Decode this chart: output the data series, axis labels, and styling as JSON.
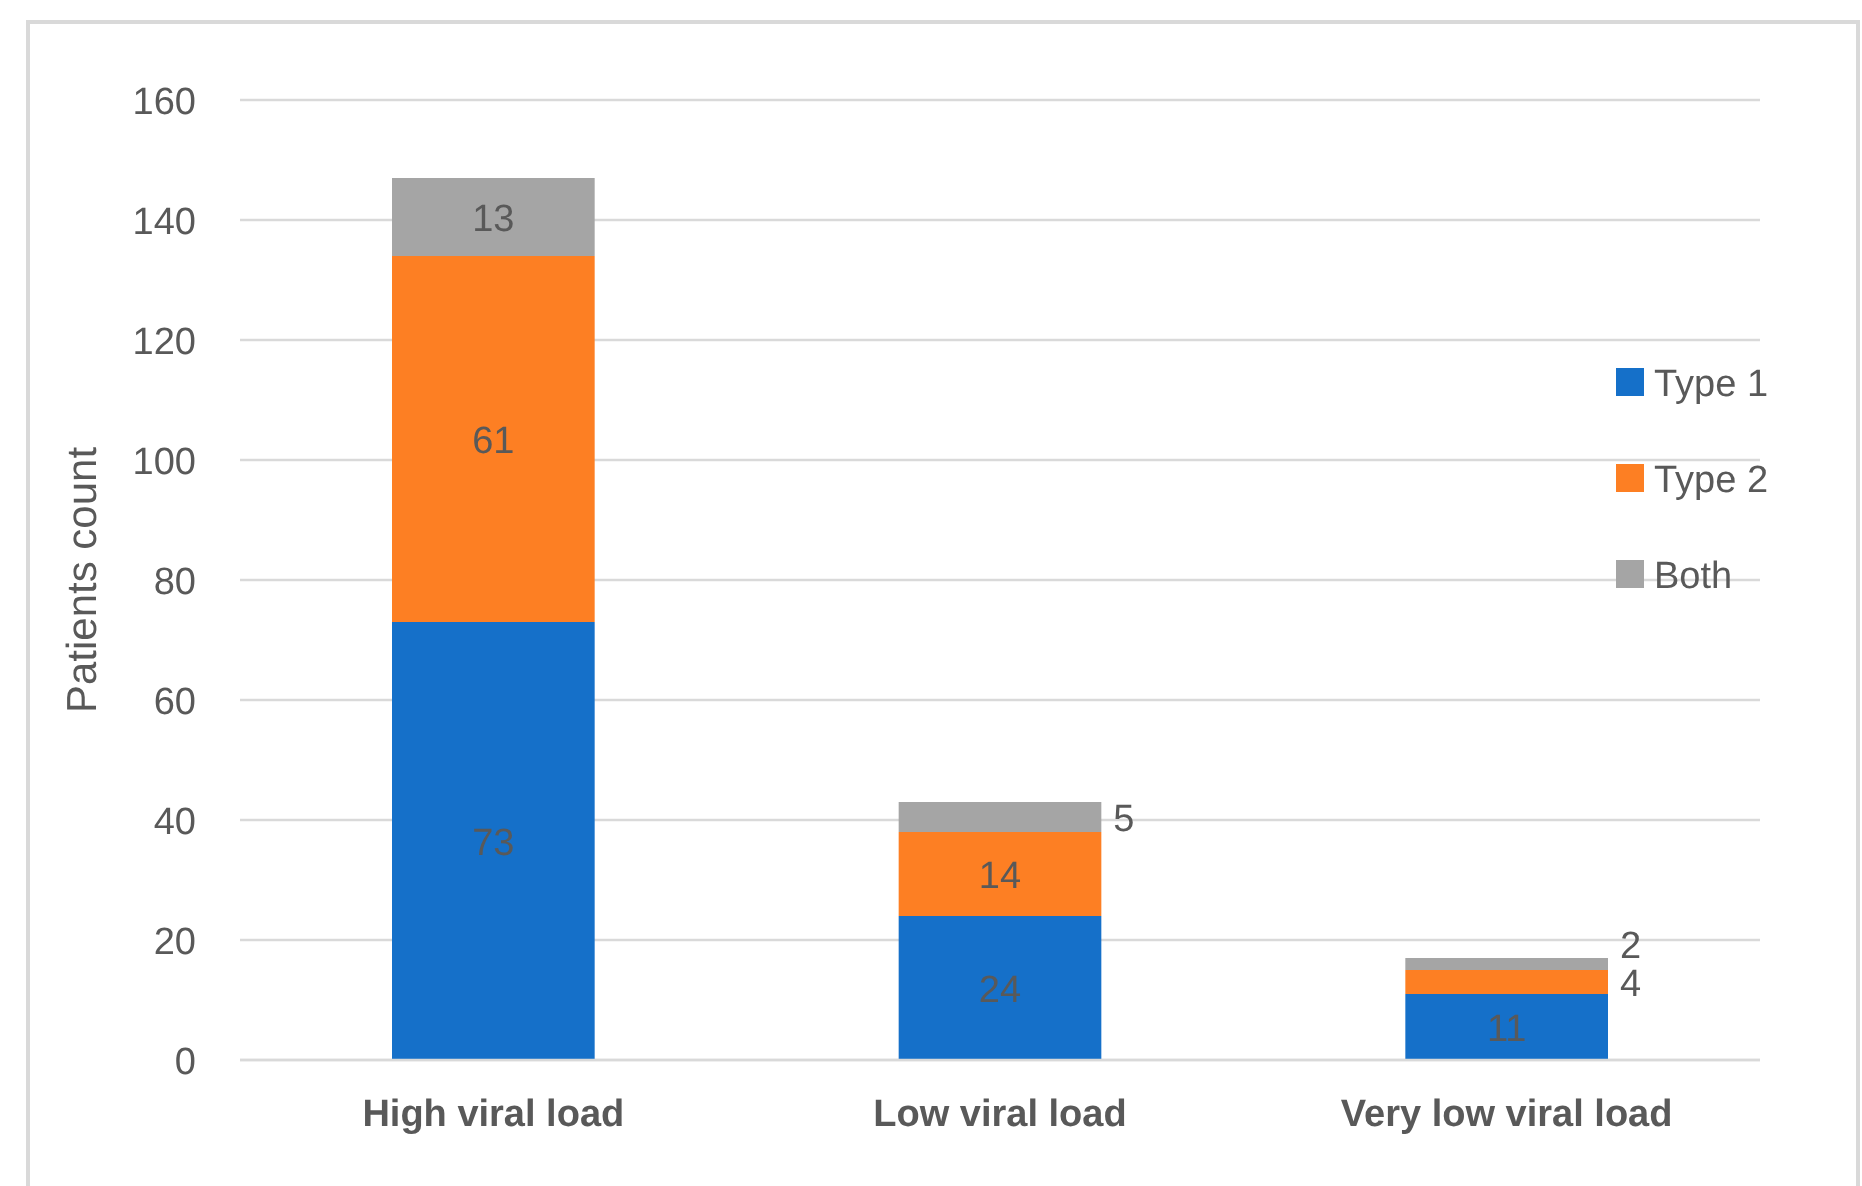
{
  "chart_data": {
    "type": "bar",
    "ylabel": "Patients count",
    "categories": [
      "High viral load",
      "Low viral load",
      "Very low viral load"
    ],
    "series": [
      {
        "name": "Type 1",
        "color": "#1570c9",
        "values": [
          73,
          24,
          11
        ]
      },
      {
        "name": "Type 2",
        "color": "#fd7f23",
        "values": [
          61,
          14,
          4
        ]
      },
      {
        "name": "Both",
        "color": "#a5a5a5",
        "values": [
          13,
          5,
          2
        ]
      }
    ],
    "stacked": true,
    "ylim": [
      0,
      160
    ],
    "yticks": [
      0,
      20,
      40,
      60,
      80,
      100,
      120,
      140,
      160
    ],
    "grid": "y",
    "legend": "right",
    "data_labels": true
  }
}
